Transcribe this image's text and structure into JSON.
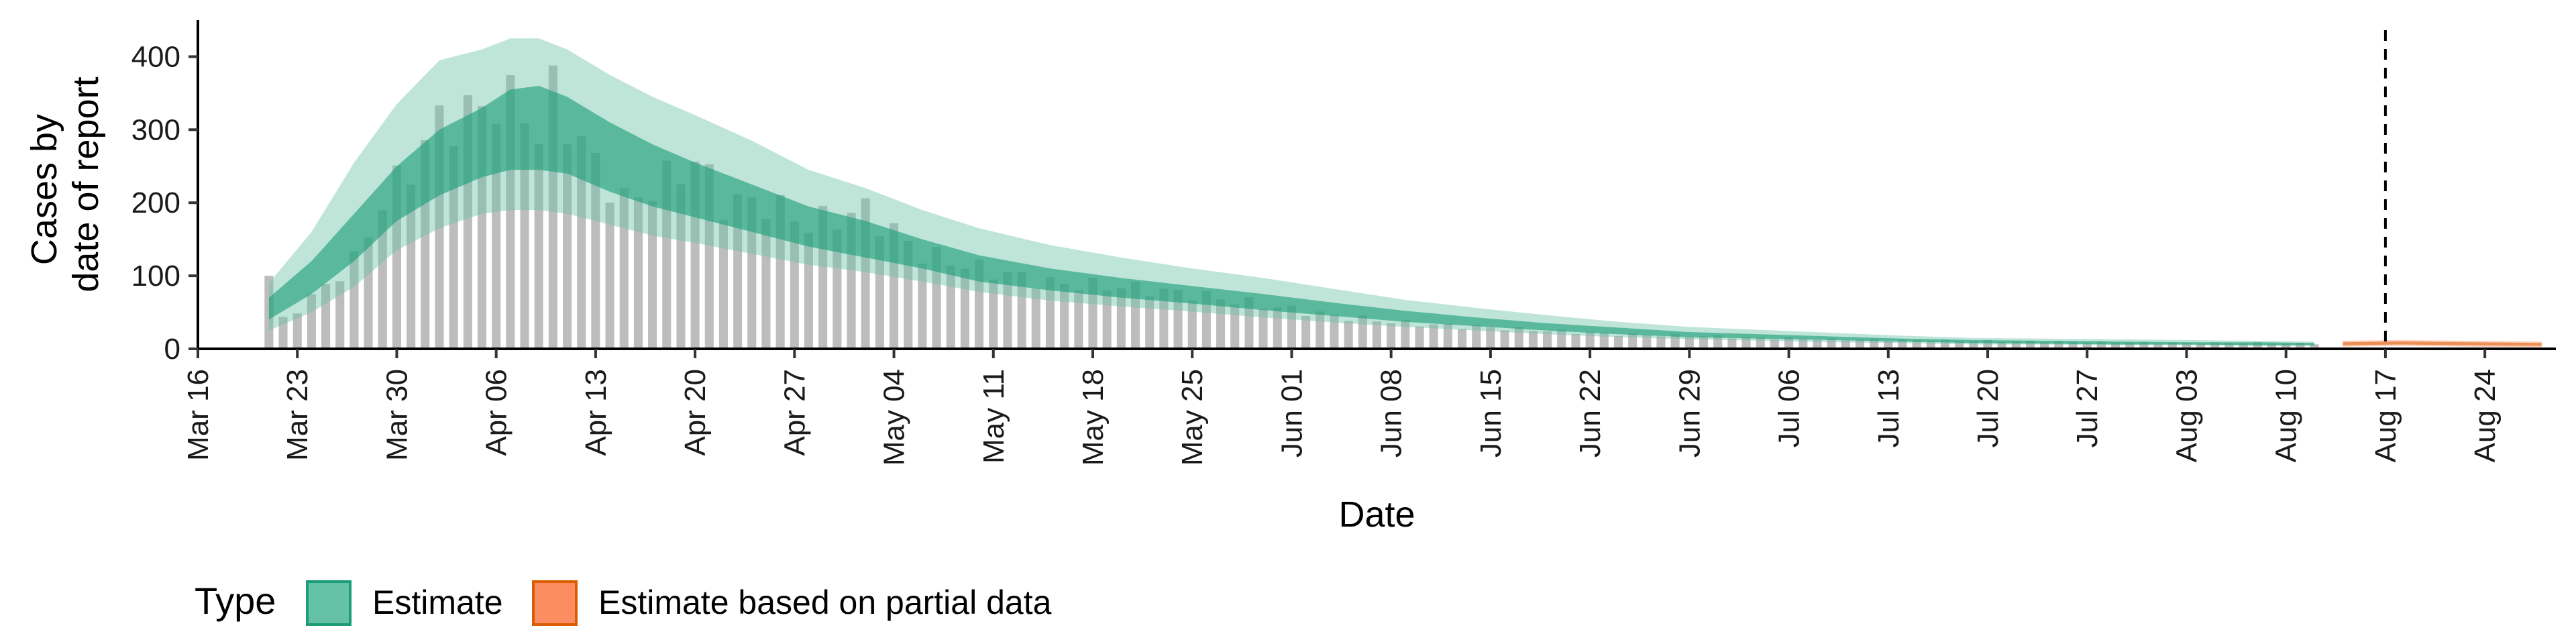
{
  "chart_data": {
    "type": "bar",
    "xlabel": "Date",
    "ylabel_lines": [
      "Cases by",
      "date of report"
    ],
    "ylim": [
      0,
      450
    ],
    "y_ticks": [
      0,
      100,
      200,
      300,
      400
    ],
    "x_tick_labels": [
      "Mar 16",
      "Mar 23",
      "Mar 30",
      "Apr 06",
      "Apr 13",
      "Apr 20",
      "Apr 27",
      "May 04",
      "May 11",
      "May 18",
      "May 25",
      "Jun 01",
      "Jun 08",
      "Jun 15",
      "Jun 22",
      "Jun 29",
      "Jul 06",
      "Jul 13",
      "Jul 20",
      "Jul 27",
      "Aug 03",
      "Aug 10",
      "Aug 17",
      "Aug 24"
    ],
    "x_range_days": [
      -5,
      161
    ],
    "start_day_label": "Mar 21",
    "reported_cases_anchor_days": [
      0,
      1,
      3,
      6,
      8,
      10,
      12,
      14,
      16,
      18,
      19,
      20,
      22,
      25,
      28,
      30,
      32,
      35,
      38,
      42,
      46,
      50,
      55,
      60,
      65,
      70,
      75,
      80,
      85,
      90,
      95,
      100,
      105,
      110,
      115,
      120,
      125,
      130,
      135,
      140,
      144
    ],
    "reported_cases_anchor_values": [
      100,
      40,
      70,
      120,
      200,
      250,
      310,
      320,
      340,
      330,
      290,
      350,
      280,
      200,
      230,
      260,
      200,
      200,
      170,
      190,
      130,
      110,
      90,
      85,
      75,
      60,
      45,
      35,
      30,
      25,
      20,
      18,
      15,
      13,
      12,
      11,
      10,
      9,
      8,
      8,
      7
    ],
    "estimate_days": [
      0,
      3,
      6,
      9,
      12,
      15,
      17,
      19,
      21,
      24,
      27,
      30,
      34,
      38,
      42,
      46,
      50,
      55,
      60,
      65,
      70,
      75,
      80,
      85,
      90,
      95,
      100,
      105,
      110,
      115,
      120,
      125,
      130,
      135,
      140,
      144
    ],
    "estimate_median": [
      55,
      95,
      150,
      210,
      255,
      280,
      300,
      300,
      295,
      260,
      235,
      215,
      190,
      165,
      150,
      130,
      110,
      95,
      85,
      75,
      65,
      55,
      45,
      38,
      30,
      25,
      20,
      17,
      14,
      12,
      10,
      9,
      8,
      8,
      7,
      7
    ],
    "estimate_50_lower": [
      40,
      75,
      120,
      175,
      210,
      235,
      245,
      245,
      240,
      215,
      195,
      180,
      160,
      140,
      125,
      110,
      92,
      80,
      70,
      62,
      53,
      45,
      37,
      31,
      25,
      20,
      16,
      14,
      12,
      10,
      8,
      7,
      6,
      6,
      5,
      5
    ],
    "estimate_50_upper": [
      70,
      120,
      185,
      250,
      300,
      330,
      355,
      360,
      345,
      310,
      280,
      255,
      225,
      195,
      175,
      150,
      128,
      110,
      97,
      86,
      75,
      63,
      52,
      43,
      35,
      29,
      23,
      20,
      17,
      14,
      12,
      11,
      10,
      9,
      9,
      8
    ],
    "estimate_90_lower": [
      25,
      50,
      85,
      135,
      165,
      185,
      190,
      190,
      185,
      170,
      155,
      145,
      130,
      115,
      105,
      92,
      78,
      66,
      58,
      51,
      43,
      36,
      30,
      25,
      20,
      16,
      13,
      11,
      9,
      8,
      6,
      6,
      5,
      5,
      4,
      4
    ],
    "estimate_90_upper": [
      90,
      160,
      255,
      335,
      395,
      410,
      425,
      425,
      410,
      375,
      345,
      320,
      285,
      245,
      220,
      190,
      165,
      142,
      125,
      110,
      97,
      82,
      67,
      56,
      46,
      37,
      30,
      26,
      22,
      18,
      15,
      14,
      13,
      12,
      11,
      10
    ],
    "partial_days": [
      146,
      150,
      155,
      160
    ],
    "partial_median": [
      7,
      8,
      7,
      6
    ],
    "partial_50_lower": [
      5,
      6,
      5,
      4
    ],
    "partial_50_upper": [
      9,
      10,
      9,
      8
    ],
    "partial_90_lower": [
      3,
      4,
      3,
      2
    ],
    "partial_90_upper": [
      11,
      12,
      11,
      10
    ],
    "vline_day": 149,
    "colors": {
      "estimate": "#66c2a5",
      "estimate_dark": "#1b9e77",
      "partial": "#fc8d62",
      "partial_dark": "#d95f02",
      "bars": "#bdbdbd"
    }
  },
  "legend": {
    "title": "Type",
    "items": [
      "Estimate",
      "Estimate based on partial data"
    ]
  }
}
